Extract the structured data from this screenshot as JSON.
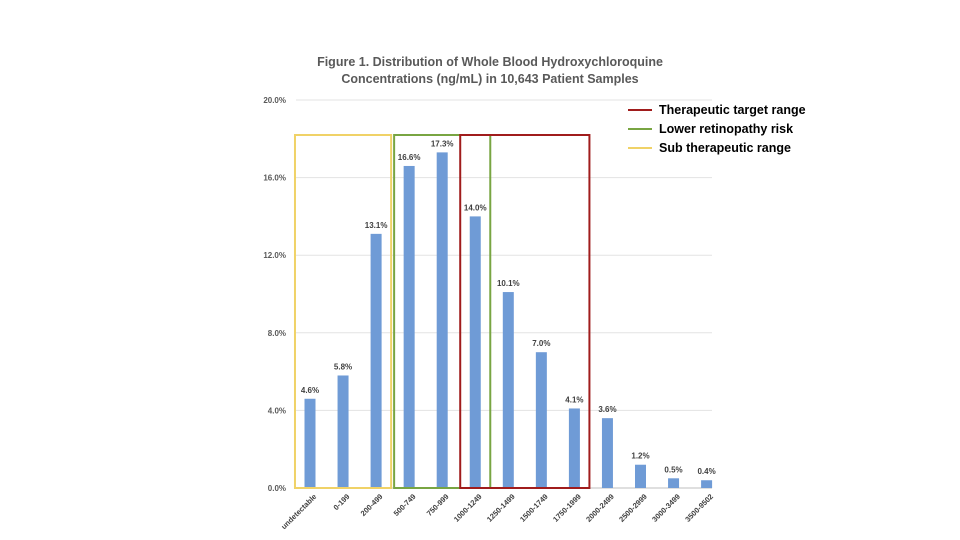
{
  "chart_data": {
    "type": "bar",
    "title": "Figure 1. Distribution of Whole Blood Hydroxychloroquine",
    "subtitle": "Concentrations (ng/mL)  in 10,643 Patient Samples",
    "xlabel": "",
    "ylabel": "",
    "ylim": [
      0,
      20
    ],
    "yticks": [
      "0.0%",
      "4.0%",
      "8.0%",
      "12.0%",
      "16.0%",
      "20.0%"
    ],
    "ytick_values": [
      0,
      4,
      8,
      12,
      16,
      20
    ],
    "grid": true,
    "categories": [
      "undetectable",
      "0-199",
      "200-499",
      "500-749",
      "750-999",
      "1000-1249",
      "1250-1499",
      "1500-1749",
      "1750-1999",
      "2000-2499",
      "2500-2999",
      "3000-3499",
      "3500-9502"
    ],
    "values": [
      4.6,
      5.8,
      13.1,
      16.6,
      17.3,
      14.0,
      10.1,
      7.0,
      4.1,
      3.6,
      1.2,
      0.5,
      0.4
    ],
    "value_labels": [
      "4.6%",
      "5.8%",
      "13.1%",
      "16.6%",
      "17.3%",
      "14.0%",
      "10.1%",
      "7.0%",
      "4.1%",
      "3.6%",
      "1.2%",
      "0.5%",
      "0.4%"
    ],
    "bar_color": "#6f9bd6",
    "legend_position": "top-right",
    "ranges": [
      {
        "name": "Therapeutic target range",
        "color": "#a01c1c",
        "from": "1000-1249",
        "to": "1750-1999"
      },
      {
        "name": "Lower retinopathy risk",
        "color": "#78a542",
        "from": "500-749",
        "to": "1000-1249"
      },
      {
        "name": "Sub therapeutic range",
        "color": "#f0d267",
        "from": "undetectable",
        "to": "200-499"
      }
    ]
  }
}
